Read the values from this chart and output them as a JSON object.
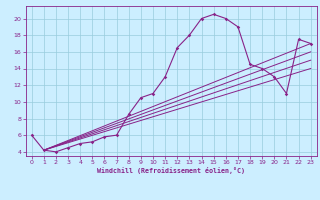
{
  "xlabel": "Windchill (Refroidissement éolien,°C)",
  "bg_color": "#cceeff",
  "line_color": "#882288",
  "grid_color": "#99ccdd",
  "xlim": [
    -0.5,
    23.5
  ],
  "ylim": [
    3.5,
    21.5
  ],
  "xticks": [
    0,
    1,
    2,
    3,
    4,
    5,
    6,
    7,
    8,
    9,
    10,
    11,
    12,
    13,
    14,
    15,
    16,
    17,
    18,
    19,
    20,
    21,
    22,
    23
  ],
  "yticks": [
    4,
    6,
    8,
    10,
    12,
    14,
    16,
    18,
    20
  ],
  "series": [
    [
      0,
      6.0
    ],
    [
      1,
      4.2
    ],
    [
      2,
      4.0
    ],
    [
      3,
      4.5
    ],
    [
      4,
      5.0
    ],
    [
      5,
      5.2
    ],
    [
      6,
      5.8
    ],
    [
      7,
      6.0
    ],
    [
      8,
      8.5
    ],
    [
      9,
      10.5
    ],
    [
      10,
      11.0
    ],
    [
      11,
      13.0
    ],
    [
      12,
      16.5
    ],
    [
      13,
      18.0
    ],
    [
      14,
      20.0
    ],
    [
      15,
      20.5
    ],
    [
      16,
      20.0
    ],
    [
      17,
      19.0
    ],
    [
      18,
      14.5
    ],
    [
      19,
      14.0
    ],
    [
      20,
      13.0
    ],
    [
      21,
      11.0
    ],
    [
      22,
      17.5
    ],
    [
      23,
      17.0
    ]
  ],
  "linear_lines": [
    [
      [
        1,
        4.2
      ],
      [
        23,
        17.0
      ]
    ],
    [
      [
        1,
        4.2
      ],
      [
        23,
        16.0
      ]
    ],
    [
      [
        1,
        4.2
      ],
      [
        23,
        15.0
      ]
    ],
    [
      [
        1,
        4.2
      ],
      [
        23,
        14.0
      ]
    ]
  ]
}
